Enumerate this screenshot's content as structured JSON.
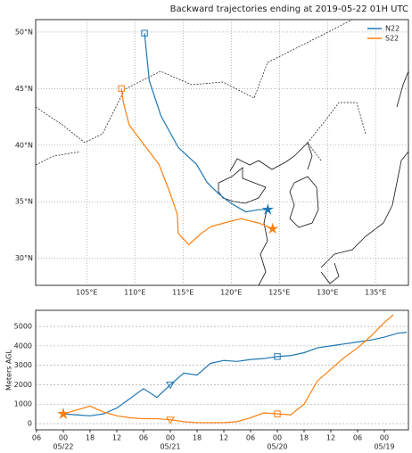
{
  "chart_data": [
    {
      "type": "map",
      "title": "Backward trajectories ending at 2019-05-22 01H UTC",
      "xlim": [
        99.7,
        138.4
      ],
      "ylim": [
        27.6,
        51.1
      ],
      "xticks": [
        {
          "value": 105,
          "label": "105°E"
        },
        {
          "value": 110,
          "label": "110°E"
        },
        {
          "value": 115,
          "label": "115°E"
        },
        {
          "value": 120,
          "label": "120°E"
        },
        {
          "value": 125,
          "label": "125°E"
        },
        {
          "value": 130,
          "label": "130°E"
        },
        {
          "value": 135,
          "label": "135°E"
        }
      ],
      "yticks": [
        {
          "value": 30,
          "label": "30°N"
        },
        {
          "value": 35,
          "label": "35°N"
        },
        {
          "value": 40,
          "label": "40°N"
        },
        {
          "value": 45,
          "label": "45°N"
        },
        {
          "value": 50,
          "label": "50°N"
        }
      ],
      "grid": true,
      "legend": "upper right",
      "series": [
        {
          "name": "N22",
          "color": "#1f77b4",
          "x": [
            123.8,
            122.9,
            121.5,
            119.9,
            118.7,
            117.5,
            116.4,
            114.5,
            112.7,
            111.5,
            111.0
          ],
          "y": [
            34.3,
            34.3,
            34.1,
            34.9,
            35.7,
            36.7,
            38.3,
            39.8,
            42.6,
            45.7,
            49.9
          ]
        },
        {
          "name": "S22",
          "color": "#ff7f0e",
          "x": [
            124.3,
            122.9,
            121.0,
            119.2,
            117.9,
            116.9,
            115.6,
            114.5,
            114.4,
            113.6,
            112.5,
            110.8,
            109.4,
            108.8,
            108.6
          ],
          "y": [
            32.6,
            33.1,
            33.5,
            33.1,
            32.8,
            32.2,
            31.2,
            32.2,
            33.9,
            35.9,
            38.3,
            40.2,
            41.8,
            43.8,
            45.0
          ]
        }
      ]
    },
    {
      "type": "line",
      "ylabel": "Meters AGL",
      "xlim": [
        -6.2,
        77.4
      ],
      "ylim": [
        -320,
        5830
      ],
      "xticks": [
        {
          "value": -6,
          "label": "06"
        },
        {
          "value": 0,
          "label": "00"
        },
        {
          "value": 6,
          "label": "18"
        },
        {
          "value": 12,
          "label": "12"
        },
        {
          "value": 18,
          "label": "06"
        },
        {
          "value": 24,
          "label": "00"
        },
        {
          "value": 30,
          "label": "18"
        },
        {
          "value": 36,
          "label": "12"
        },
        {
          "value": 42,
          "label": "06"
        },
        {
          "value": 48,
          "label": "00"
        },
        {
          "value": 54,
          "label": "18"
        },
        {
          "value": 60,
          "label": "12"
        },
        {
          "value": 66,
          "label": "06"
        },
        {
          "value": 72,
          "label": "00"
        }
      ],
      "xdates": [
        {
          "value": 0,
          "label": "05/22"
        },
        {
          "value": 24,
          "label": "05/21"
        },
        {
          "value": 48,
          "label": "05/20"
        },
        {
          "value": 72,
          "label": "05/19"
        }
      ],
      "yticks": [
        0,
        1000,
        2000,
        3000,
        4000,
        5000
      ],
      "grid": true,
      "series": [
        {
          "name": "N22",
          "color": "#1f77b4",
          "x": [
            0,
            3,
            6,
            9,
            12,
            15,
            18,
            21,
            24,
            27,
            30,
            33,
            36,
            39,
            42,
            45,
            48,
            51,
            54,
            57,
            60,
            63,
            66,
            69,
            72,
            75,
            77
          ],
          "values": [
            500,
            450,
            400,
            500,
            800,
            1300,
            1800,
            1350,
            2000,
            2600,
            2500,
            3100,
            3250,
            3200,
            3300,
            3350,
            3450,
            3500,
            3650,
            3900,
            4000,
            4100,
            4200,
            4300,
            4450,
            4650,
            4700
          ]
        },
        {
          "name": "S22",
          "color": "#ff7f0e",
          "x": [
            0,
            3,
            6,
            9,
            12,
            15,
            18,
            21,
            24,
            27,
            30,
            33,
            36,
            39,
            42,
            45,
            48,
            51,
            54,
            57,
            60,
            63,
            66,
            69,
            72,
            74
          ],
          "values": [
            500,
            700,
            900,
            600,
            400,
            300,
            250,
            250,
            200,
            100,
            50,
            50,
            50,
            100,
            300,
            550,
            500,
            450,
            1000,
            2200,
            2800,
            3400,
            3900,
            4500,
            5200,
            5600
          ]
        }
      ]
    }
  ]
}
